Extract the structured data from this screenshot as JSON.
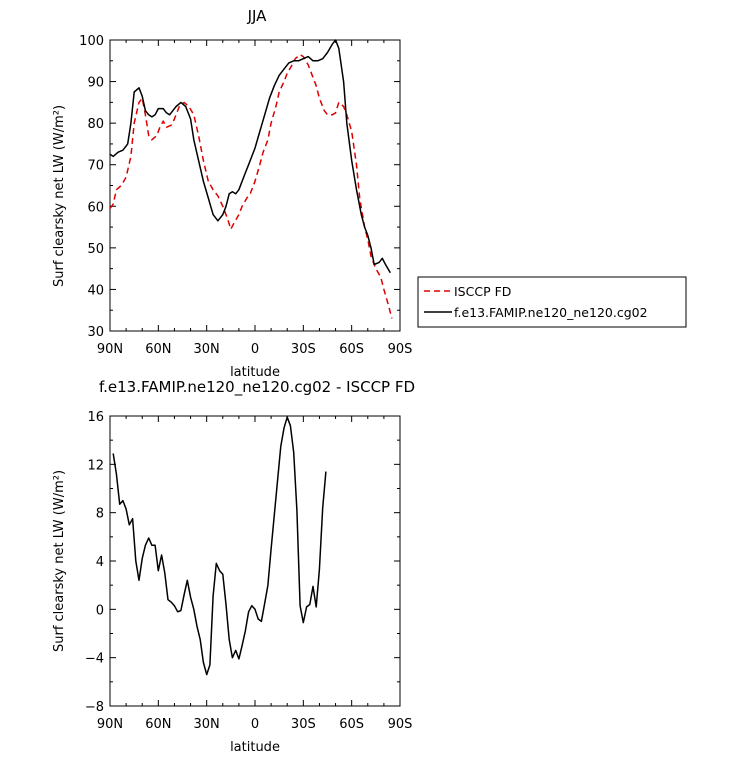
{
  "chart_data": [
    {
      "type": "line",
      "title": "JJA",
      "xlabel": "latitude",
      "ylabel": "Surf clearsky net LW (W/m²)",
      "xlim": [
        90,
        -90
      ],
      "ylim": [
        30,
        100
      ],
      "x_ticks": [
        90,
        60,
        30,
        0,
        -30,
        -60,
        -90
      ],
      "x_tick_labels": [
        "90N",
        "60N",
        "30N",
        "0",
        "30S",
        "60S",
        "90S"
      ],
      "y_ticks": [
        30,
        40,
        50,
        60,
        70,
        80,
        90,
        100
      ],
      "y_tick_labels": [
        "30",
        "40",
        "50",
        "60",
        "70",
        "80",
        "90",
        "100"
      ],
      "grid": false,
      "legend_position": "right",
      "series": [
        {
          "name": "ISCCP FD",
          "color": "#dd0000",
          "style": "dashed",
          "points": [
            [
              90,
              59.5
            ],
            [
              88,
              60.5
            ],
            [
              86,
              64
            ],
            [
              83,
              65
            ],
            [
              80,
              67
            ],
            [
              77,
              72
            ],
            [
              75,
              80
            ],
            [
              72,
              85
            ],
            [
              70,
              86
            ],
            [
              68,
              82
            ],
            [
              66,
              77
            ],
            [
              64,
              76
            ],
            [
              61,
              77
            ],
            [
              59,
              79
            ],
            [
              57,
              80.5
            ],
            [
              55,
              79
            ],
            [
              52,
              79.5
            ],
            [
              50,
              81
            ],
            [
              47,
              84
            ],
            [
              44,
              85
            ],
            [
              41,
              84
            ],
            [
              38,
              82
            ],
            [
              35,
              77
            ],
            [
              32,
              71
            ],
            [
              29,
              66
            ],
            [
              26,
              64
            ],
            [
              23,
              62.5
            ],
            [
              20,
              60
            ],
            [
              17,
              57
            ],
            [
              15,
              54.5
            ],
            [
              13,
              56
            ],
            [
              10,
              58
            ],
            [
              8,
              60
            ],
            [
              5,
              62
            ],
            [
              3,
              63
            ],
            [
              0,
              66
            ],
            [
              -3,
              70
            ],
            [
              -5,
              73
            ],
            [
              -8,
              76
            ],
            [
              -10,
              80
            ],
            [
              -13,
              84
            ],
            [
              -15,
              87.5
            ],
            [
              -18,
              90
            ],
            [
              -20,
              92
            ],
            [
              -23,
              94
            ],
            [
              -25,
              95.5
            ],
            [
              -28,
              96.5
            ],
            [
              -30,
              96
            ],
            [
              -33,
              94
            ],
            [
              -35,
              92
            ],
            [
              -38,
              89
            ],
            [
              -40,
              86
            ],
            [
              -43,
              83
            ],
            [
              -45,
              82
            ],
            [
              -48,
              82
            ],
            [
              -50,
              82.5
            ],
            [
              -52,
              85
            ],
            [
              -55,
              84
            ],
            [
              -57,
              82
            ],
            [
              -60,
              78
            ],
            [
              -63,
              70
            ],
            [
              -65,
              62
            ],
            [
              -68,
              55
            ],
            [
              -70,
              52
            ],
            [
              -72,
              48
            ],
            [
              -75,
              45
            ],
            [
              -78,
              43
            ],
            [
              -80,
              40
            ],
            [
              -83,
              36
            ],
            [
              -85,
              33
            ]
          ]
        },
        {
          "name": "f.e13.FAMIP.ne120_ne120.cg02",
          "color": "#000000",
          "style": "solid",
          "points": [
            [
              90,
              72.5
            ],
            [
              88,
              72
            ],
            [
              85,
              73
            ],
            [
              82,
              73.5
            ],
            [
              79,
              75
            ],
            [
              77,
              80
            ],
            [
              75,
              87.5
            ],
            [
              72,
              88.5
            ],
            [
              70,
              86.5
            ],
            [
              68,
              83
            ],
            [
              66,
              82
            ],
            [
              64,
              81.5
            ],
            [
              62,
              82
            ],
            [
              60,
              83.5
            ],
            [
              57,
              83.5
            ],
            [
              55,
              82.5
            ],
            [
              53,
              82
            ],
            [
              51,
              83
            ],
            [
              49,
              84
            ],
            [
              46,
              85
            ],
            [
              43,
              84
            ],
            [
              40,
              81
            ],
            [
              38,
              76
            ],
            [
              35,
              71
            ],
            [
              32,
              66
            ],
            [
              29,
              62
            ],
            [
              26,
              58
            ],
            [
              23,
              56.5
            ],
            [
              20,
              58
            ],
            [
              18,
              60
            ],
            [
              16,
              63
            ],
            [
              14,
              63.5
            ],
            [
              12,
              63
            ],
            [
              10,
              64
            ],
            [
              8,
              66
            ],
            [
              6,
              68
            ],
            [
              4,
              70
            ],
            [
              2,
              72
            ],
            [
              0,
              74
            ],
            [
              -3,
              78
            ],
            [
              -6,
              82
            ],
            [
              -9,
              86
            ],
            [
              -12,
              89
            ],
            [
              -15,
              91.5
            ],
            [
              -18,
              93
            ],
            [
              -21,
              94.5
            ],
            [
              -24,
              95
            ],
            [
              -27,
              95
            ],
            [
              -30,
              95.5
            ],
            [
              -33,
              96
            ],
            [
              -36,
              95
            ],
            [
              -39,
              95
            ],
            [
              -42,
              95.5
            ],
            [
              -45,
              97
            ],
            [
              -48,
              99
            ],
            [
              -50,
              100
            ],
            [
              -52,
              98
            ],
            [
              -55,
              90
            ],
            [
              -57,
              80
            ],
            [
              -60,
              71
            ],
            [
              -63,
              64
            ],
            [
              -66,
              58
            ],
            [
              -68,
              55
            ],
            [
              -70,
              53
            ],
            [
              -72,
              50
            ],
            [
              -74,
              46
            ],
            [
              -77,
              46.5
            ],
            [
              -79,
              47.5
            ],
            [
              -81,
              46
            ],
            [
              -84,
              44
            ]
          ]
        }
      ]
    },
    {
      "type": "line",
      "title": "f.e13.FAMIP.ne120_ne120.cg02 - ISCCP FD",
      "xlabel": "latitude",
      "ylabel": "Surf clearsky net LW (W/m²)",
      "xlim": [
        90,
        -90
      ],
      "ylim": [
        -8,
        16
      ],
      "x_ticks": [
        90,
        60,
        30,
        0,
        -30,
        -60,
        -90
      ],
      "x_tick_labels": [
        "90N",
        "60N",
        "30N",
        "0",
        "30S",
        "60S",
        "90S"
      ],
      "y_ticks": [
        -8,
        -4,
        0,
        4,
        8,
        12,
        16
      ],
      "y_tick_labels": [
        "−8",
        "−4",
        "0",
        "4",
        "8",
        "12",
        "16"
      ],
      "grid": false,
      "series": [
        {
          "color": "#000000",
          "style": "solid",
          "points": [
            [
              88,
              12.9
            ],
            [
              86,
              11.2
            ],
            [
              84,
              8.7
            ],
            [
              82,
              9
            ],
            [
              80,
              8.3
            ],
            [
              78,
              7
            ],
            [
              76,
              7.5
            ],
            [
              74,
              4
            ],
            [
              72,
              2.4
            ],
            [
              70,
              4.2
            ],
            [
              68,
              5.3
            ],
            [
              66,
              5.9
            ],
            [
              64,
              5.3
            ],
            [
              62,
              5.3
            ],
            [
              60,
              3.2
            ],
            [
              58,
              4.5
            ],
            [
              56,
              3
            ],
            [
              54,
              0.8
            ],
            [
              52,
              0.6
            ],
            [
              50,
              0.3
            ],
            [
              48,
              -0.2
            ],
            [
              46,
              -0.1
            ],
            [
              44,
              1.2
            ],
            [
              42,
              2.4
            ],
            [
              40,
              1
            ],
            [
              38,
              0
            ],
            [
              36,
              -1.4
            ],
            [
              34,
              -2.5
            ],
            [
              32,
              -4.4
            ],
            [
              30,
              -5.4
            ],
            [
              28,
              -4.6
            ],
            [
              26,
              1.1
            ],
            [
              24,
              3.8
            ],
            [
              22,
              3.2
            ],
            [
              20,
              2.9
            ],
            [
              18,
              0.4
            ],
            [
              16,
              -2.5
            ],
            [
              14,
              -4
            ],
            [
              12,
              -3.4
            ],
            [
              10,
              -4.1
            ],
            [
              8,
              -3
            ],
            [
              6,
              -1.8
            ],
            [
              4,
              -0.2
            ],
            [
              2,
              0.3
            ],
            [
              0,
              0
            ],
            [
              -2,
              -0.8
            ],
            [
              -4,
              -1
            ],
            [
              -6,
              0.5
            ],
            [
              -8,
              2
            ],
            [
              -10,
              5
            ],
            [
              -12,
              7.8
            ],
            [
              -14,
              10.7
            ],
            [
              -16,
              13.5
            ],
            [
              -18,
              15
            ],
            [
              -20,
              15.9
            ],
            [
              -22,
              15.2
            ],
            [
              -24,
              13
            ],
            [
              -26,
              8.2
            ],
            [
              -28,
              0.3
            ],
            [
              -30,
              -1.1
            ],
            [
              -32,
              0.2
            ],
            [
              -34,
              0.4
            ],
            [
              -36,
              1.9
            ],
            [
              -38,
              0.2
            ],
            [
              -40,
              3.3
            ],
            [
              -42,
              8.4
            ],
            [
              -44,
              11.4
            ]
          ]
        }
      ]
    }
  ]
}
